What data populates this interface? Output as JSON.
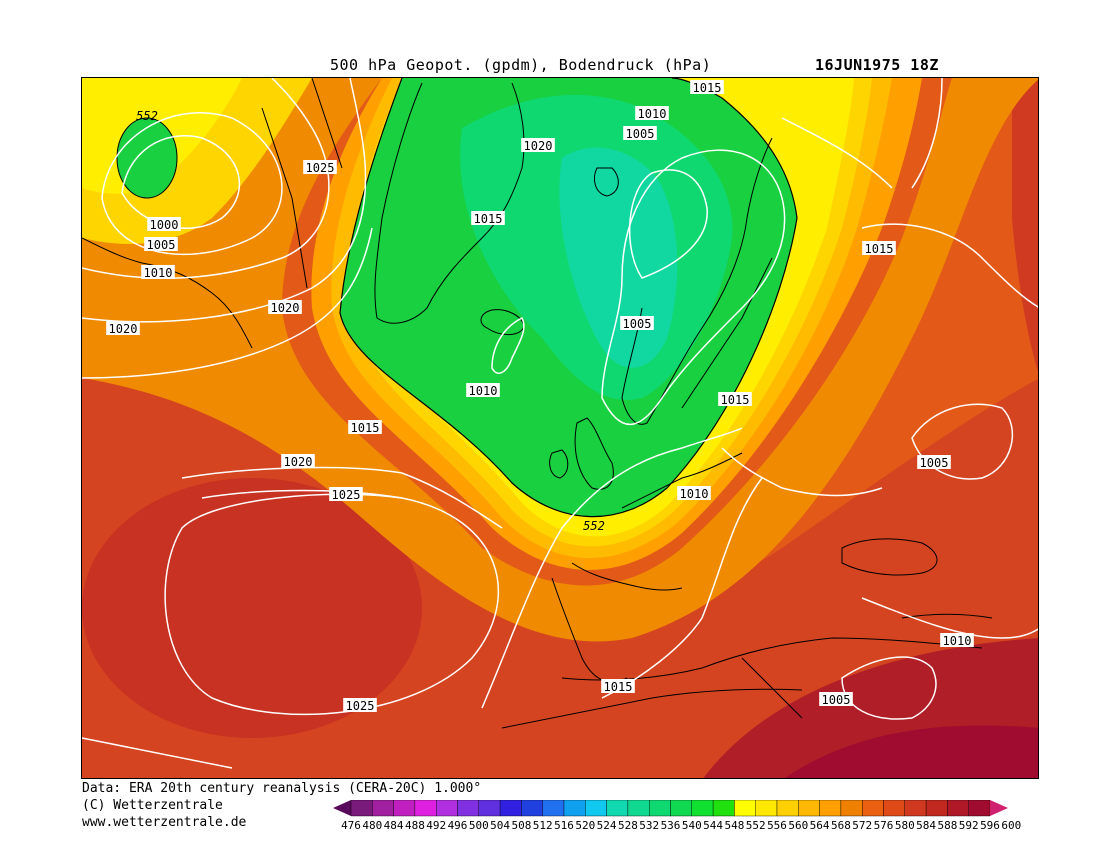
{
  "header": {
    "title": "500 hPa Geopot. (gpdm), Bodendruck (hPa)",
    "datetime": "16JUN1975 18Z"
  },
  "footer": {
    "line1": "Data: ERA 20th century reanalysis (CERA-20C) 1.000°",
    "line2": "(C) Wetterzentrale",
    "line3": "www.wetterzentrale.de"
  },
  "colorbar": {
    "levels": [
      "476",
      "480",
      "484",
      "488",
      "492",
      "496",
      "500",
      "504",
      "508",
      "512",
      "516",
      "520",
      "524",
      "528",
      "532",
      "536",
      "540",
      "544",
      "548",
      "552",
      "556",
      "560",
      "564",
      "568",
      "572",
      "576",
      "580",
      "584",
      "588",
      "592",
      "596",
      "600"
    ],
    "colors": [
      "#5a0a5a",
      "#7a1a7a",
      "#a020a0",
      "#c020c0",
      "#e020e0",
      "#b030e0",
      "#8030e0",
      "#6030e0",
      "#3020e0",
      "#2040e0",
      "#2070f0",
      "#10a0f0",
      "#10c8f0",
      "#10d8b0",
      "#10d890",
      "#10d870",
      "#10d850",
      "#10e030",
      "#20e010",
      "#ffff00",
      "#ffe800",
      "#ffd000",
      "#ffb800",
      "#ff9f00",
      "#f08000",
      "#e86010",
      "#e04a18",
      "#d03820",
      "#c02820",
      "#b01828",
      "#a00c30",
      "#d02070"
    ]
  },
  "map": {
    "pressure_labels": [
      {
        "text": "1015",
        "key": "p1"
      },
      {
        "text": "1010",
        "key": "p2"
      },
      {
        "text": "1005",
        "key": "p3"
      },
      {
        "text": "1020",
        "key": "p4"
      },
      {
        "text": "1025",
        "key": "p5"
      },
      {
        "text": "1000",
        "key": "p6"
      },
      {
        "text": "1005",
        "key": "p7"
      },
      {
        "text": "1010",
        "key": "p8"
      },
      {
        "text": "1020",
        "key": "p9"
      },
      {
        "text": "1020",
        "key": "p10"
      },
      {
        "text": "1015",
        "key": "p11"
      },
      {
        "text": "1005",
        "key": "p12"
      },
      {
        "text": "1010",
        "key": "p13"
      },
      {
        "text": "1015",
        "key": "p14"
      },
      {
        "text": "1015",
        "key": "p15"
      },
      {
        "text": "1020",
        "key": "p16"
      },
      {
        "text": "1025",
        "key": "p17"
      },
      {
        "text": "1010",
        "key": "p18"
      },
      {
        "text": "1015",
        "key": "p19"
      },
      {
        "text": "1010",
        "key": "p20"
      },
      {
        "text": "1005",
        "key": "p21"
      },
      {
        "text": "1015",
        "key": "p22"
      },
      {
        "text": "1025",
        "key": "p23"
      },
      {
        "text": "1005",
        "key": "p24"
      }
    ],
    "geopotential_labels": [
      "552",
      "552"
    ]
  }
}
